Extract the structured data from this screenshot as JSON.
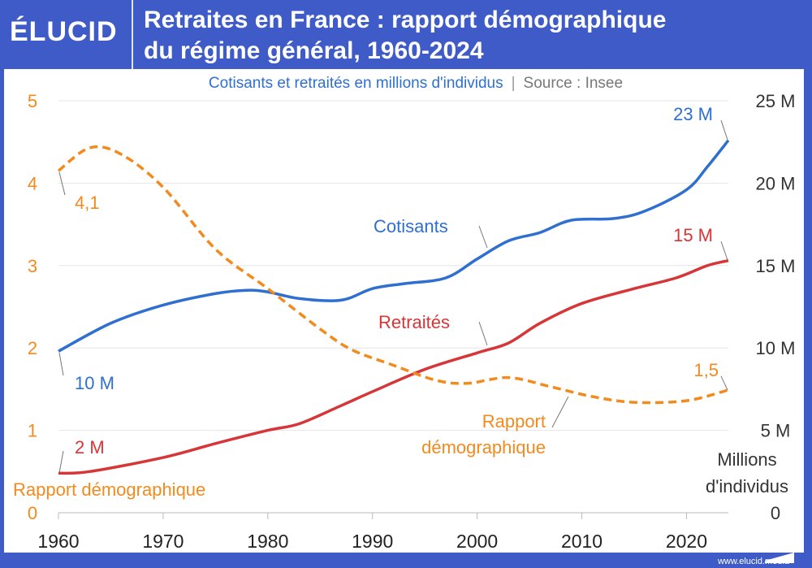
{
  "header": {
    "logo": "ÉLUCID",
    "title_line1": "Retraites en France : rapport démographique",
    "title_line2": "du régime général, 1960-2024",
    "subtitle": "Cotisants et retraités en millions d'individus",
    "separator": "|",
    "source": "Source : Insee"
  },
  "footer": {
    "url": "www.elucid.media"
  },
  "colors": {
    "brand": "#3e5bc7",
    "cotisants": "#2f6fd0",
    "retraites": "#d63638",
    "rapport": "#f28a1e"
  },
  "chart_data": {
    "type": "line",
    "title": "Retraites en France : rapport démographique du régime général, 1960-2024",
    "xlim": [
      1960,
      2024
    ],
    "x_ticks": [
      "1960",
      "1970",
      "1980",
      "1990",
      "2000",
      "2010",
      "2020"
    ],
    "y_left": {
      "label": "Rapport démographique",
      "lim": [
        0,
        5
      ],
      "ticks": [
        "0",
        "1",
        "2",
        "3",
        "4",
        "5"
      ]
    },
    "y_right": {
      "label_line1": "Millions",
      "label_line2": "d'individus",
      "lim": [
        0,
        25
      ],
      "ticks": [
        "0",
        "5 M",
        "10 M",
        "15 M",
        "20 M",
        "25 M"
      ]
    },
    "grid": true,
    "series": [
      {
        "name": "Cotisants",
        "axis": "right",
        "style": "solid",
        "start_label": "10 M",
        "end_label": "23 M",
        "x": [
          1960,
          1965,
          1970,
          1975,
          1978,
          1980,
          1983,
          1987,
          1990,
          1993,
          1997,
          2000,
          2003,
          2006,
          2009,
          2013,
          2016,
          2020,
          2022,
          2024
        ],
        "y": [
          9.8,
          11.5,
          12.6,
          13.3,
          13.5,
          13.4,
          13.0,
          12.9,
          13.6,
          13.9,
          14.25,
          15.4,
          16.5,
          17.0,
          17.75,
          17.85,
          18.3,
          19.6,
          21.0,
          22.6
        ]
      },
      {
        "name": "Retraités",
        "axis": "right",
        "style": "solid",
        "start_label": "2 M",
        "end_label": "15 M",
        "x": [
          1960,
          1963,
          1970,
          1975,
          1980,
          1983,
          1987,
          1990,
          1995,
          2000,
          2003,
          2006,
          2010,
          2015,
          2019,
          2022,
          2024
        ],
        "y": [
          2.4,
          2.5,
          3.35,
          4.2,
          5.0,
          5.4,
          6.5,
          7.35,
          8.7,
          9.7,
          10.3,
          11.5,
          12.7,
          13.6,
          14.25,
          15.0,
          15.3
        ]
      },
      {
        "name_line1": "Rapport",
        "name_line2": "démographique",
        "axis": "left",
        "style": "dashed",
        "start_label": "4,1",
        "end_label": "1,5",
        "x": [
          1960,
          1963,
          1966,
          1970,
          1975,
          1980,
          1985,
          1988,
          1992,
          1996,
          1999,
          2003,
          2007,
          2011,
          2015,
          2020,
          2024
        ],
        "y": [
          4.15,
          4.43,
          4.35,
          3.95,
          3.2,
          2.72,
          2.23,
          1.98,
          1.79,
          1.61,
          1.57,
          1.64,
          1.53,
          1.41,
          1.34,
          1.36,
          1.49
        ]
      }
    ]
  }
}
